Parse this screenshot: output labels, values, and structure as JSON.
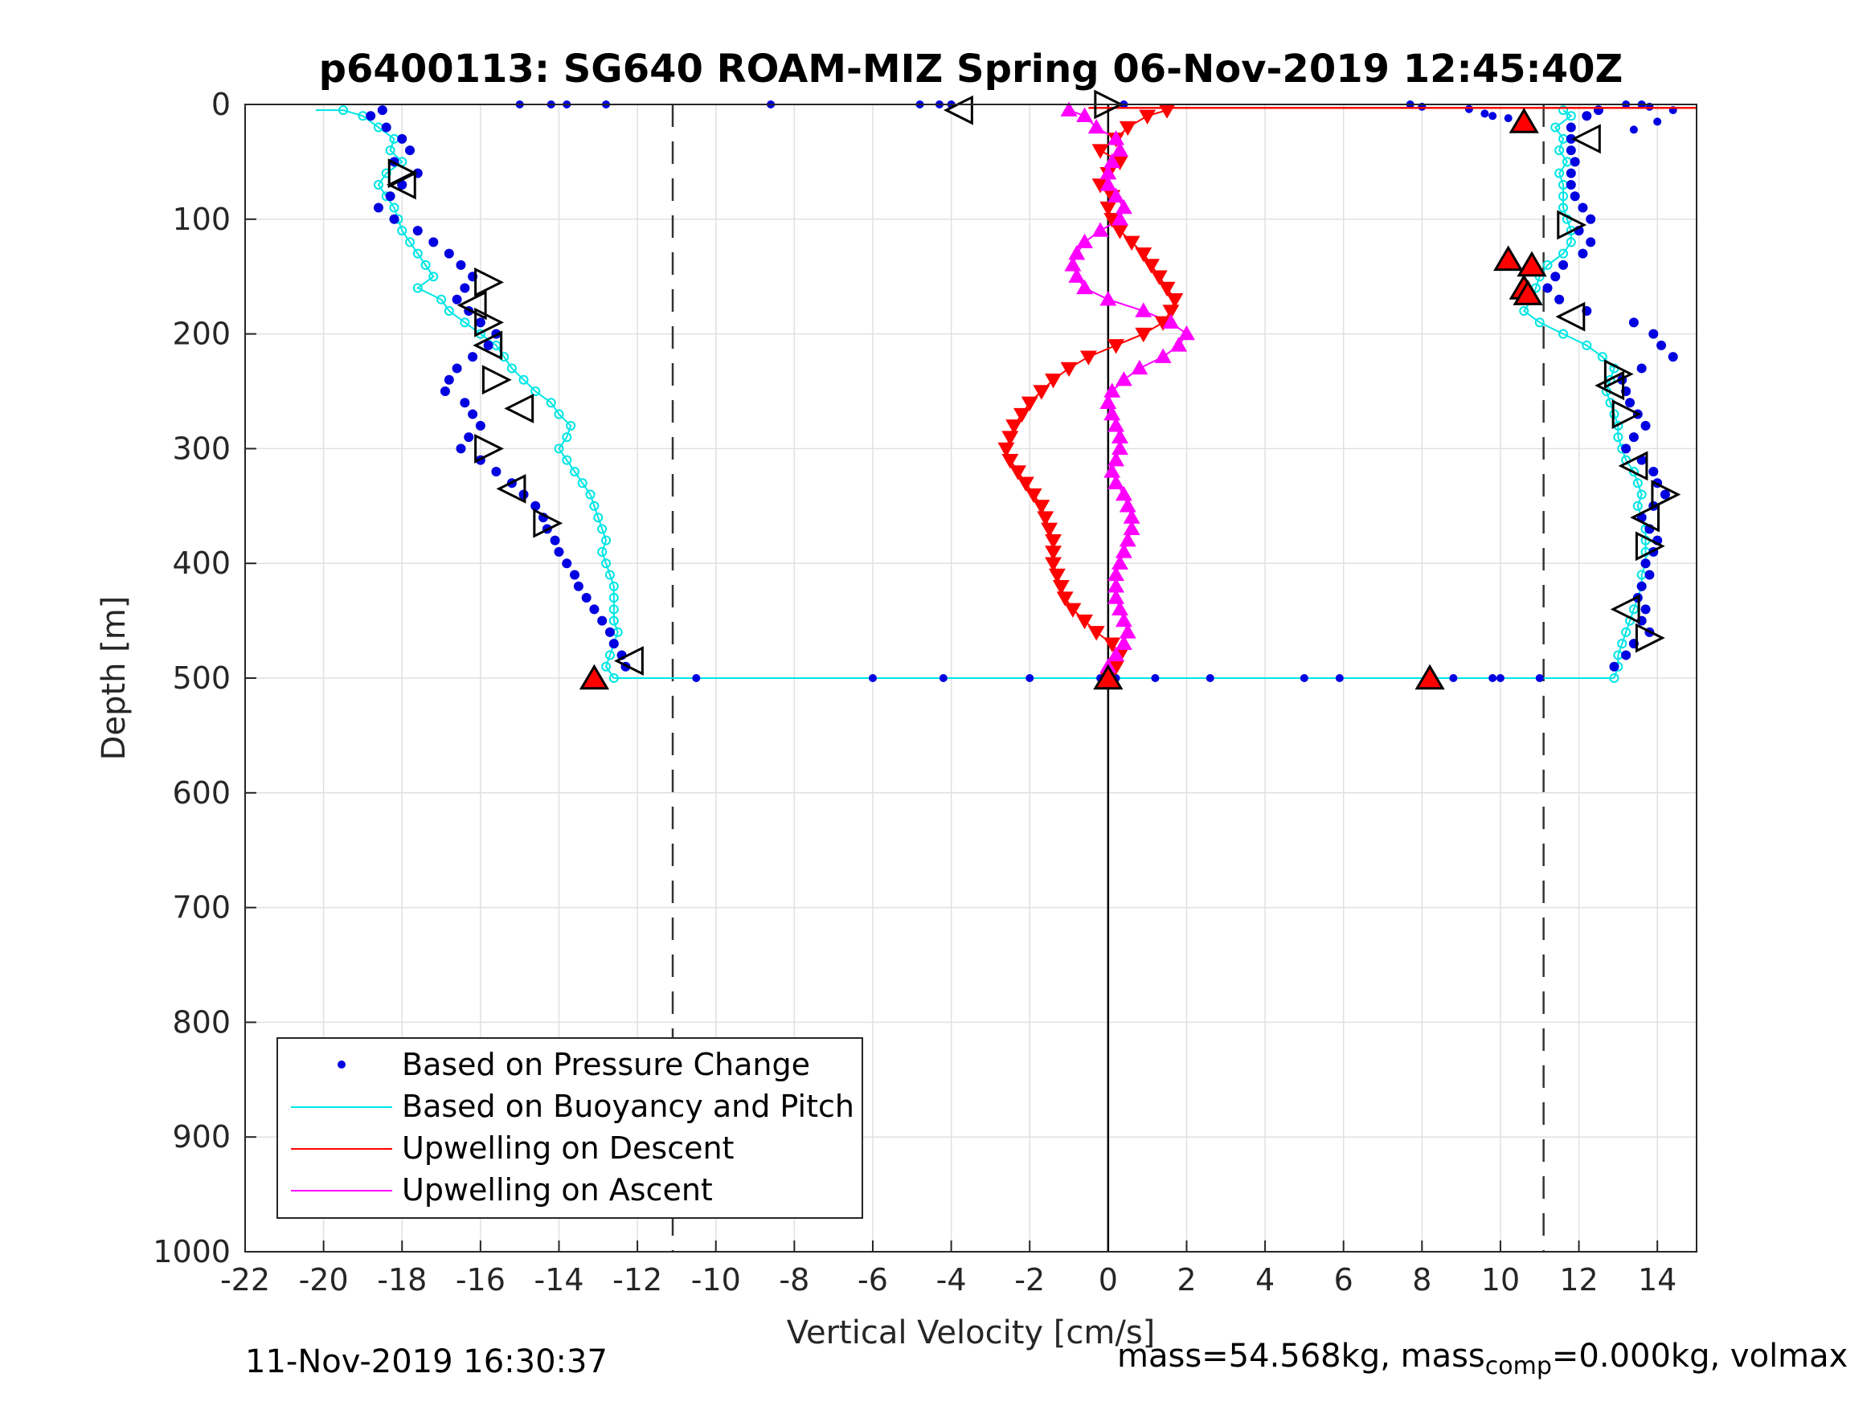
{
  "chart_data": {
    "type": "scatter",
    "title": "p6400113: SG640 ROAM-MIZ Spring 06-Nov-2019 12:45:40Z",
    "xlabel": "Vertical Velocity [cm/s]",
    "ylabel": "Depth [m]",
    "xlim": [
      -22,
      15
    ],
    "ylim": [
      0,
      1000
    ],
    "y_reversed": true,
    "grid": true,
    "xticks": [
      "-22",
      "-20",
      "-18",
      "-16",
      "-14",
      "-12",
      "-10",
      "-8",
      "-6",
      "-4",
      "-2",
      "0",
      "2",
      "4",
      "6",
      "8",
      "10",
      "12",
      "14"
    ],
    "yticks": [
      "0",
      "100",
      "200",
      "300",
      "400",
      "500",
      "600",
      "700",
      "800",
      "900",
      "1000"
    ],
    "reference_lines": {
      "dashed_x": [
        -11.1,
        11.1
      ],
      "solid_x": 0
    },
    "legend": {
      "position": "bottom-left",
      "entries": [
        "Based on Pressure Change",
        "Based on Buoyancy and Pitch",
        "Upwelling on Descent",
        "Upwelling on Ascent"
      ]
    },
    "colors": {
      "pressure": "#0000e0",
      "buoyancy": "#00e5e5",
      "descent": "#ff0000",
      "ascent": "#ff00ff"
    },
    "series": [
      {
        "key": "pressure_descent",
        "depth": [
          5,
          10,
          20,
          30,
          40,
          50,
          60,
          70,
          80,
          90,
          100,
          110,
          120,
          130,
          140,
          150,
          160,
          170,
          180,
          190,
          200,
          210,
          220,
          230,
          240,
          250,
          260,
          270,
          280,
          290,
          300,
          310,
          320,
          330,
          340,
          350,
          360,
          370,
          380,
          390,
          400,
          410,
          420,
          430,
          440,
          450,
          460,
          470,
          480,
          490
        ],
        "velocity": [
          -18.5,
          -18.8,
          -18.4,
          -18.0,
          -17.8,
          -18.2,
          -17.6,
          -18.0,
          -18.3,
          -18.6,
          -18.2,
          -17.6,
          -17.2,
          -16.8,
          -16.5,
          -16.2,
          -16.4,
          -16.6,
          -16.3,
          -16.0,
          -15.6,
          -15.8,
          -16.2,
          -16.6,
          -16.8,
          -16.9,
          -16.4,
          -16.2,
          -16.0,
          -16.3,
          -16.5,
          -16.0,
          -15.6,
          -15.2,
          -14.9,
          -14.6,
          -14.4,
          -14.3,
          -14.1,
          -14.0,
          -13.8,
          -13.6,
          -13.5,
          -13.3,
          -13.1,
          -12.9,
          -12.7,
          -12.6,
          -12.4,
          -12.3
        ]
      },
      {
        "key": "pressure_ascent",
        "depth": [
          5,
          10,
          20,
          30,
          40,
          50,
          60,
          70,
          80,
          90,
          100,
          110,
          120,
          130,
          140,
          150,
          160,
          170,
          180,
          190,
          200,
          210,
          220,
          230,
          240,
          250,
          260,
          270,
          280,
          290,
          300,
          310,
          320,
          330,
          340,
          350,
          360,
          370,
          380,
          390,
          400,
          410,
          420,
          430,
          440,
          450,
          460,
          470,
          480,
          490
        ],
        "velocity": [
          12.5,
          12.2,
          11.8,
          11.8,
          11.8,
          11.9,
          11.8,
          11.8,
          11.9,
          12.1,
          12.3,
          12.0,
          12.3,
          12.1,
          11.6,
          11.4,
          11.2,
          11.5,
          12.2,
          13.4,
          13.9,
          14.1,
          14.4,
          13.6,
          13.1,
          13.2,
          13.3,
          13.5,
          13.7,
          13.4,
          13.2,
          13.6,
          13.9,
          14.0,
          14.2,
          13.9,
          13.6,
          13.8,
          14.0,
          13.9,
          13.7,
          13.8,
          13.6,
          13.5,
          13.7,
          13.6,
          13.8,
          13.4,
          13.2,
          12.9
        ]
      },
      {
        "key": "buoyancy_descent",
        "depth": [
          5,
          10,
          20,
          30,
          40,
          50,
          60,
          70,
          80,
          90,
          100,
          110,
          120,
          130,
          140,
          150,
          160,
          170,
          180,
          190,
          200,
          210,
          220,
          230,
          240,
          250,
          260,
          270,
          280,
          290,
          300,
          310,
          320,
          330,
          340,
          350,
          360,
          370,
          380,
          390,
          400,
          410,
          420,
          430,
          440,
          450,
          460,
          470,
          480,
          490,
          500
        ],
        "velocity": [
          -19.5,
          -19.0,
          -18.6,
          -18.2,
          -18.3,
          -18.0,
          -18.4,
          -18.6,
          -18.4,
          -18.2,
          -18.1,
          -18.0,
          -17.8,
          -17.6,
          -17.4,
          -17.2,
          -17.6,
          -17.0,
          -16.8,
          -16.4,
          -16.0,
          -15.6,
          -15.4,
          -15.2,
          -14.9,
          -14.6,
          -14.2,
          -14.0,
          -13.7,
          -13.8,
          -14.0,
          -13.8,
          -13.6,
          -13.4,
          -13.2,
          -13.1,
          -13.0,
          -12.9,
          -12.8,
          -12.9,
          -12.8,
          -12.7,
          -12.6,
          -12.6,
          -12.6,
          -12.6,
          -12.5,
          -12.6,
          -12.7,
          -12.8,
          -12.6
        ]
      },
      {
        "key": "buoyancy_ascent",
        "depth": [
          5,
          10,
          20,
          30,
          40,
          50,
          60,
          70,
          80,
          90,
          100,
          110,
          120,
          130,
          140,
          150,
          160,
          170,
          180,
          190,
          200,
          210,
          220,
          230,
          240,
          250,
          260,
          270,
          280,
          290,
          300,
          310,
          320,
          330,
          340,
          350,
          360,
          370,
          380,
          390,
          400,
          410,
          420,
          430,
          440,
          450,
          460,
          470,
          480,
          490,
          500
        ],
        "velocity": [
          11.6,
          11.8,
          11.4,
          11.6,
          11.5,
          11.7,
          11.5,
          11.6,
          11.6,
          11.6,
          11.7,
          11.8,
          11.8,
          11.6,
          11.2,
          11.0,
          10.9,
          10.8,
          10.6,
          11.0,
          11.6,
          12.2,
          12.6,
          12.9,
          12.8,
          12.7,
          12.8,
          12.9,
          13.0,
          13.0,
          13.1,
          13.2,
          13.4,
          13.5,
          13.6,
          13.5,
          13.6,
          13.7,
          13.7,
          13.7,
          13.7,
          13.6,
          13.6,
          13.5,
          13.4,
          13.3,
          13.2,
          13.1,
          13.0,
          13.0,
          12.9
        ]
      },
      {
        "key": "upwelling_descent",
        "depth": [
          5,
          10,
          20,
          30,
          40,
          50,
          60,
          70,
          80,
          90,
          100,
          110,
          120,
          130,
          140,
          150,
          160,
          170,
          180,
          190,
          200,
          210,
          220,
          230,
          240,
          250,
          260,
          270,
          280,
          290,
          300,
          310,
          320,
          330,
          340,
          350,
          360,
          370,
          380,
          390,
          400,
          410,
          420,
          430,
          440,
          450,
          460,
          470,
          480,
          490,
          500
        ],
        "velocity": [
          1.5,
          1.0,
          0.5,
          0.2,
          -0.2,
          0.3,
          0.0,
          -0.2,
          0.1,
          0.0,
          0.1,
          0.3,
          0.6,
          0.9,
          1.1,
          1.3,
          1.5,
          1.7,
          1.6,
          1.4,
          0.9,
          0.2,
          -0.5,
          -1.0,
          -1.4,
          -1.7,
          -2.0,
          -2.2,
          -2.4,
          -2.5,
          -2.6,
          -2.5,
          -2.3,
          -2.1,
          -1.9,
          -1.7,
          -1.6,
          -1.5,
          -1.4,
          -1.4,
          -1.4,
          -1.3,
          -1.2,
          -1.1,
          -0.9,
          -0.6,
          -0.3,
          0.1,
          0.3,
          0.2,
          0.0
        ]
      },
      {
        "key": "upwelling_ascent",
        "depth": [
          5,
          10,
          20,
          30,
          40,
          50,
          60,
          70,
          80,
          90,
          100,
          110,
          120,
          130,
          140,
          150,
          160,
          170,
          180,
          190,
          200,
          210,
          220,
          230,
          240,
          250,
          260,
          270,
          280,
          290,
          300,
          310,
          320,
          330,
          340,
          350,
          360,
          370,
          380,
          390,
          400,
          410,
          420,
          430,
          440,
          450,
          460,
          470,
          480,
          490,
          500
        ],
        "velocity": [
          -1.0,
          -0.6,
          -0.3,
          0.2,
          0.3,
          0.1,
          0.0,
          0.0,
          0.2,
          0.4,
          0.3,
          -0.2,
          -0.6,
          -0.8,
          -0.9,
          -0.8,
          -0.6,
          0.0,
          0.9,
          1.6,
          2.0,
          1.8,
          1.4,
          0.8,
          0.4,
          0.1,
          0.0,
          0.1,
          0.2,
          0.3,
          0.3,
          0.2,
          0.1,
          0.2,
          0.4,
          0.5,
          0.6,
          0.6,
          0.5,
          0.4,
          0.3,
          0.2,
          0.2,
          0.2,
          0.3,
          0.4,
          0.5,
          0.4,
          0.2,
          0.0,
          0.0
        ]
      },
      {
        "key": "pressure_bottom",
        "depth": [
          500,
          500,
          500,
          500,
          500,
          500,
          500,
          500,
          500,
          500,
          500,
          500,
          500,
          500
        ],
        "velocity": [
          -10.5,
          -6.0,
          -4.2,
          -2.0,
          -0.2,
          0.2,
          1.2,
          2.6,
          5.0,
          5.9,
          8.8,
          9.8,
          10.0,
          11.0
        ]
      },
      {
        "key": "pressure_surface",
        "depth": [
          0,
          0,
          0,
          0,
          0,
          0,
          0,
          0,
          0,
          0,
          2,
          4,
          8,
          10,
          12,
          14,
          0,
          0,
          2,
          5,
          15,
          22
        ],
        "velocity": [
          -15.0,
          -14.2,
          -13.8,
          -12.8,
          -8.6,
          -4.8,
          -4.3,
          -4.0,
          0.4,
          7.7,
          8.0,
          9.2,
          9.6,
          9.8,
          10.2,
          10.6,
          13.2,
          13.6,
          13.8,
          14.4,
          14.0,
          13.4
        ]
      }
    ],
    "markers": {
      "open_triangles_descent": {
        "depth": [
          5,
          60,
          70,
          155,
          175,
          190,
          210,
          240,
          265,
          300,
          335,
          365,
          485
        ],
        "velocity": [
          -3.8,
          -18.0,
          -18.0,
          -15.8,
          -16.2,
          -15.8,
          -15.8,
          -15.6,
          -15.0,
          -15.8,
          -15.2,
          -14.3,
          -12.2
        ]
      },
      "open_triangles_ascent": {
        "depth": [
          0,
          30,
          105,
          185,
          235,
          245,
          270,
          315,
          340,
          360,
          385,
          440,
          465
        ],
        "velocity": [
          0.0,
          12.2,
          11.8,
          11.8,
          13.0,
          12.8,
          13.2,
          13.4,
          14.2,
          13.7,
          13.8,
          13.2,
          13.8
        ]
      },
      "filled_red_triangles": {
        "depth": [
          15,
          135,
          140,
          160,
          165,
          500,
          500,
          500
        ],
        "velocity": [
          10.6,
          10.2,
          10.8,
          10.6,
          10.7,
          -13.1,
          8.2,
          0.0
        ]
      }
    }
  },
  "footer": {
    "timestamp": "11-Nov-2019 16:30:37",
    "mass_label": "mass=54.568kg, mass",
    "mass_subscript": "comp",
    "mass_rest": "=0.000kg, volmax"
  }
}
